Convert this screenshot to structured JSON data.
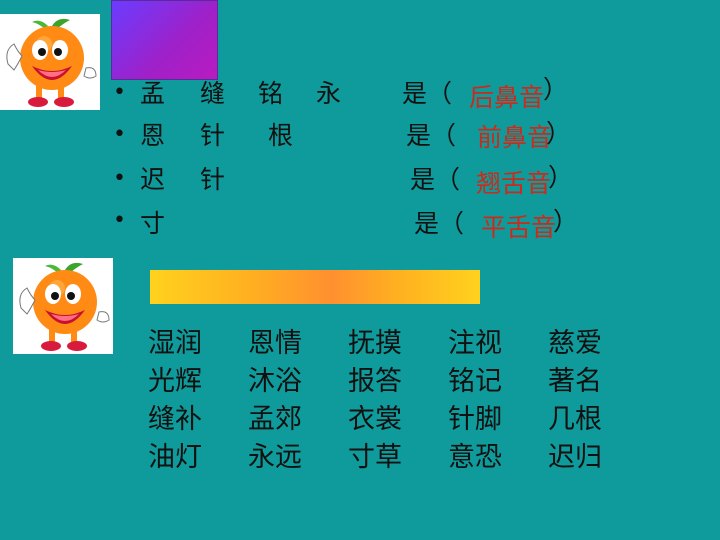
{
  "rows": [
    {
      "chars": [
        "孟",
        "缝",
        "铭",
        "永"
      ],
      "is_label": "是（",
      "close": "）",
      "answer": "后鼻音"
    },
    {
      "chars": [
        "恩",
        "针",
        "根"
      ],
      "is_label": "是（",
      "close": "）",
      "answer": "前鼻音"
    },
    {
      "chars": [
        "迟",
        "针"
      ],
      "is_label": "是（",
      "close": "）",
      "answer": "翘舌音"
    },
    {
      "chars": [
        "寸"
      ],
      "is_label": "是（",
      "close": "）",
      "answer": "平舌音"
    }
  ],
  "bullet": "•",
  "vocab": [
    "湿润",
    "恩情",
    "抚摸",
    "注视",
    "慈爱",
    "光辉",
    "沐浴",
    "报答",
    "铭记",
    "著名",
    "缝补",
    "孟郊",
    "衣裳",
    "针脚",
    "几根",
    "油灯",
    "永远",
    "寸草",
    "意恐",
    "迟归"
  ],
  "colors": {
    "background": "#0f9b9b",
    "answer": "#cc2a1a",
    "purple_box": "#a020c8",
    "bar": "#ffb020"
  },
  "icons": [
    "orange-mascot-icon",
    "orange-mascot-icon"
  ]
}
